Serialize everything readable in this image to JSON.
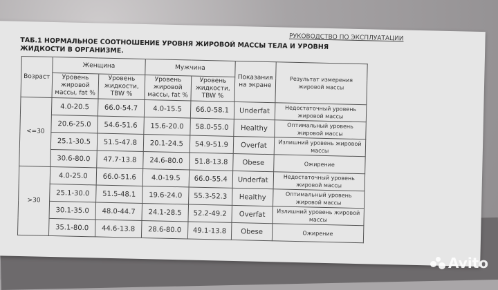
{
  "header_runner": "РУКОВОДСТВО ПО ЭКСПЛУАТАЦИИ",
  "title": "ТАБ.1 НОРМАЛЬНОЕ СООТНОШЕНИЕ УРОВНЯ ЖИРОВОЙ МАССЫ ТЕЛА И УРОВНЯ ЖИДКОСТИ В ОРГАНИЗМЕ.",
  "columns": {
    "age": "Возраст",
    "women": "Женщина",
    "men": "Мужчина",
    "fat": "Уровень жировой массы, fat %",
    "tbw": "Уровень жидкости, TBW %",
    "screen": "Показания на экране",
    "result": "Результат измерения жировой массы"
  },
  "groups": [
    {
      "age": "<=30",
      "rows": [
        {
          "w_fat": "4.0-20.5",
          "w_tbw": "66.0-54.7",
          "m_fat": "4.0-15.5",
          "m_tbw": "66.0-58.1",
          "screen": "Underfat",
          "result": "Недостаточный уровень жировой массы"
        },
        {
          "w_fat": "20.6-25.0",
          "w_tbw": "54.6-51.6",
          "m_fat": "15.6-20.0",
          "m_tbw": "58.0-55.0",
          "screen": "Healthy",
          "result": "Оптимальный уровень жировой массы"
        },
        {
          "w_fat": "25.1-30.5",
          "w_tbw": "51.5-47.8",
          "m_fat": "20.1-24.5",
          "m_tbw": "54.9-51.9",
          "screen": "Overfat",
          "result": "Излишний уровень жировой массы"
        },
        {
          "w_fat": "30.6-80.0",
          "w_tbw": "47.7-13.8",
          "m_fat": "24.6-80.0",
          "m_tbw": "51.8-13.8",
          "screen": "Obese",
          "result": "Ожирение"
        }
      ]
    },
    {
      "age": ">30",
      "rows": [
        {
          "w_fat": "4.0-25.0",
          "w_tbw": "66.0-51.6",
          "m_fat": "4.0-19.5",
          "m_tbw": "66.0-55.4",
          "screen": "Underfat",
          "result": "Недостаточный уровень жировой массы"
        },
        {
          "w_fat": "25.1-30.0",
          "w_tbw": "51.5-48.1",
          "m_fat": "19.6-24.0",
          "m_tbw": "55.3-52.3",
          "screen": "Healthy",
          "result": "Оптимальный уровень жировой массы"
        },
        {
          "w_fat": "30.1-35.0",
          "w_tbw": "48.0-44.7",
          "m_fat": "24.1-28.5",
          "m_tbw": "52.2-49.2",
          "screen": "Overfat",
          "result": "Излишний уровень жировой массы"
        },
        {
          "w_fat": "35.1-80.0",
          "w_tbw": "44.6-13.8",
          "m_fat": "28.6-80.0",
          "m_tbw": "49.1-13.8",
          "screen": "Obese",
          "result": "Ожирение"
        }
      ]
    }
  ],
  "watermark": "Avito"
}
